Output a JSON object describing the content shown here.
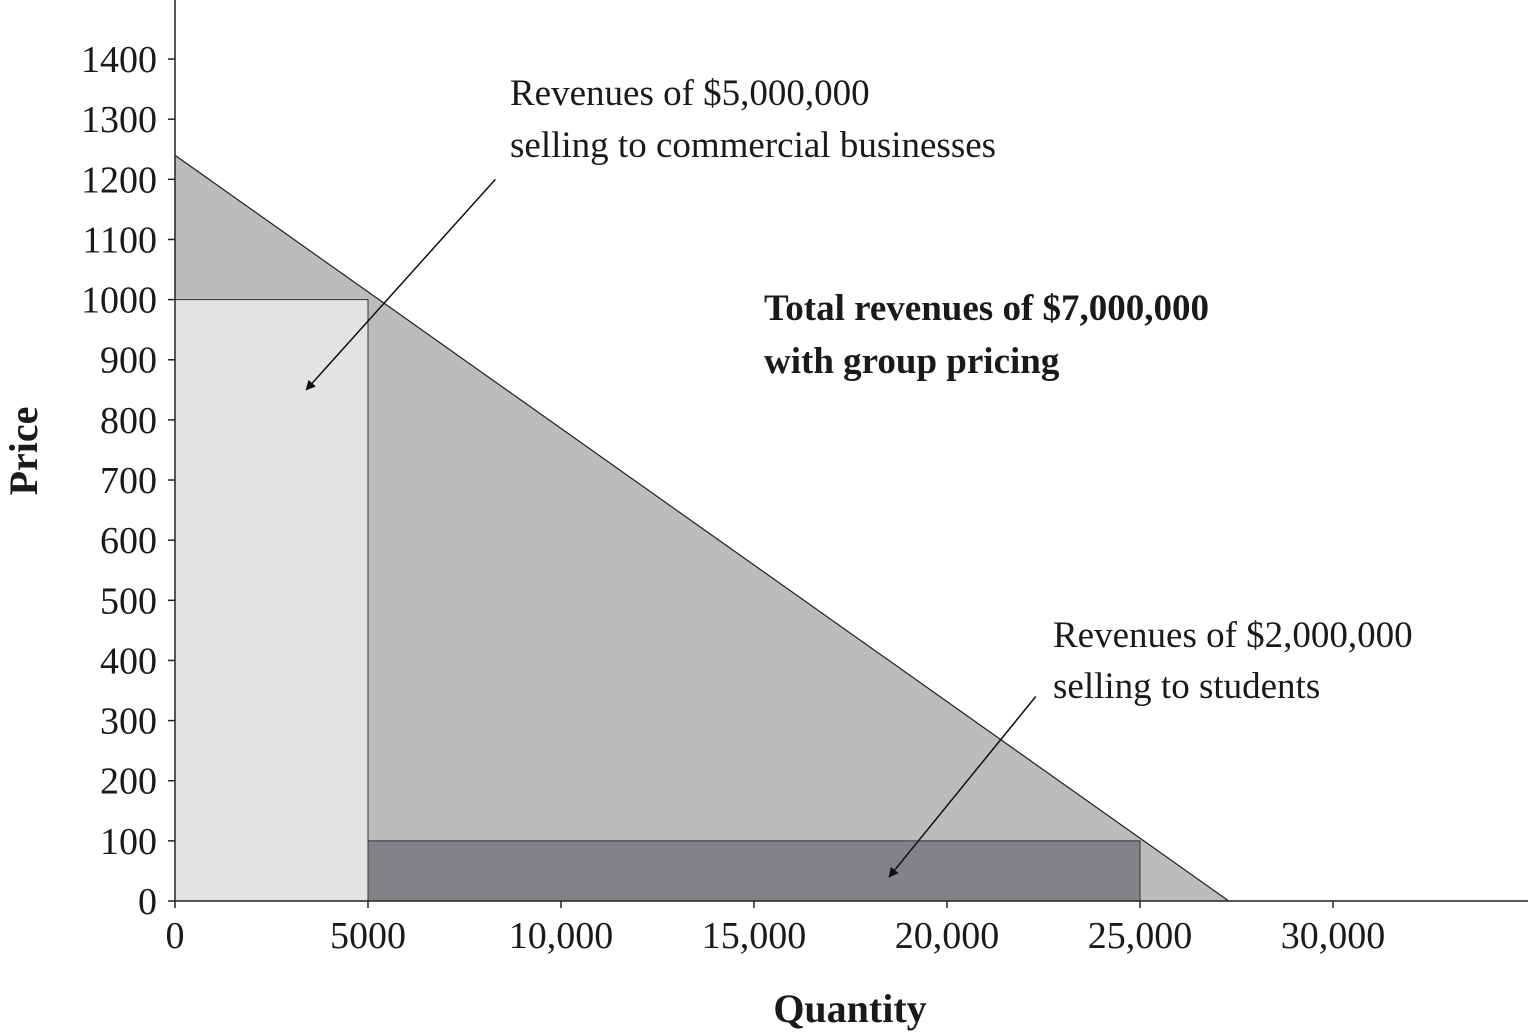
{
  "chart_data": {
    "type": "area",
    "xlabel": "Quantity",
    "ylabel": "Price",
    "xlim": [
      0,
      35000
    ],
    "ylim": [
      0,
      1500
    ],
    "x_ticks": [
      {
        "value": 0,
        "label": "0"
      },
      {
        "value": 5000,
        "label": "5000"
      },
      {
        "value": 10000,
        "label": "10,000"
      },
      {
        "value": 15000,
        "label": "15,000"
      },
      {
        "value": 20000,
        "label": "20,000"
      },
      {
        "value": 25000,
        "label": "25,000"
      },
      {
        "value": 30000,
        "label": "30,000"
      }
    ],
    "y_ticks": [
      {
        "value": 0,
        "label": "0"
      },
      {
        "value": 100,
        "label": "100"
      },
      {
        "value": 200,
        "label": "200"
      },
      {
        "value": 300,
        "label": "300"
      },
      {
        "value": 400,
        "label": "400"
      },
      {
        "value": 500,
        "label": "500"
      },
      {
        "value": 600,
        "label": "600"
      },
      {
        "value": 700,
        "label": "700"
      },
      {
        "value": 800,
        "label": "800"
      },
      {
        "value": 900,
        "label": "900"
      },
      {
        "value": 1000,
        "label": "1000"
      },
      {
        "value": 1100,
        "label": "1100"
      },
      {
        "value": 1200,
        "label": "1200"
      },
      {
        "value": 1300,
        "label": "1300"
      },
      {
        "value": 1400,
        "label": "1400"
      }
    ],
    "demand_line": {
      "x": [
        0,
        27300
      ],
      "y": [
        1240,
        0
      ]
    },
    "regions": [
      {
        "id": "commercial-revenue",
        "x": [
          0,
          5000
        ],
        "price": 1000,
        "color": "#e3e3e3"
      },
      {
        "id": "student-revenue",
        "x": [
          5000,
          25000
        ],
        "price": 100,
        "color": "#838387"
      }
    ],
    "shaded_area_color": "#bcbcbf",
    "grid": false,
    "annotations": [
      {
        "id": "commercial",
        "lines": [
          "Revenues of $5,000,000",
          "selling to commercial businesses"
        ],
        "bold": false,
        "arrow_from": [
          8300,
          1200
        ],
        "arrow_to": [
          3400,
          850
        ]
      },
      {
        "id": "total",
        "lines": [
          "Total revenues of $7,000,000",
          "with group pricing"
        ],
        "bold": true
      },
      {
        "id": "students",
        "lines": [
          "Revenues of $2,000,000",
          "selling to students"
        ],
        "bold": false,
        "arrow_from": [
          22300,
          340
        ],
        "arrow_to": [
          18500,
          40
        ]
      }
    ]
  }
}
